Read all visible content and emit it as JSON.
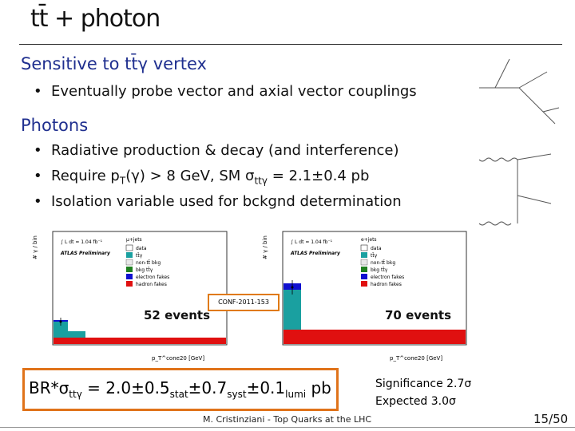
{
  "slide": {
    "title": "tt̄ + photon",
    "section1": {
      "heading": "Sensitive to tt̄γ vertex",
      "bullet": "Eventually probe vector and axial vector couplings"
    },
    "section2": {
      "heading": "Photons",
      "bullet1": "Radiative production & decay (and interference)",
      "bullet2_pre": "Require p",
      "bullet2_T": "T",
      "bullet2_mid": "(γ) > 8 GeV, SM  σ",
      "bullet2_sub": "ttγ",
      "bullet2_post": " = 2.1±0.4 pb",
      "bullet3": "Isolation variable used for bckgnd determination"
    },
    "plots": {
      "left": {
        "channel": "μ+jets",
        "lumi": "∫ L dt = 1.04 fb⁻¹",
        "label": "ATLAS Preliminary",
        "ylabel": "# γ / bin",
        "xlabel": "p_T^cone20 [GeV]",
        "events": "52 events",
        "legend": [
          "data",
          "tt̄γ",
          "non-tt̄ bkg",
          "bkg tt̄γ",
          "electron fakes",
          "hadron fakes"
        ]
      },
      "right": {
        "channel": "e+jets",
        "lumi": "∫ L dt = 1.04 fb⁻¹",
        "label": "ATLAS Preliminary",
        "ylabel": "# γ / bin",
        "xlabel": "p_T^cone20 [GeV]",
        "events": "70 events",
        "legend": [
          "data",
          "tt̄γ",
          "non-tt̄ bkg",
          "bkg tt̄γ",
          "electron fakes",
          "hadron fakes"
        ]
      },
      "conf_note": "CONF-2011-153"
    },
    "result": {
      "br_pre": "BR*σ",
      "br_sub1": "ttγ",
      "br_mid1": " = 2.0±0.5",
      "br_sub2": "stat",
      "br_mid2": "±0.7",
      "br_sub3": "syst",
      "br_mid3": "±0.1",
      "br_sub4": "lumi",
      "br_post": "  pb",
      "significance": "Significance 2.7σ",
      "expected": "Expected 3.0σ"
    },
    "footer": "M. Cristinziani - Top Quarks at the LHC",
    "page_number": "15/50"
  },
  "colors": {
    "accent": "#1f2f8f",
    "box_border": "#e0731a",
    "signal": "#1aa0a0",
    "hadron_fakes": "#e01010",
    "electron_fakes": "#1010d0",
    "bkg": "#208020"
  }
}
